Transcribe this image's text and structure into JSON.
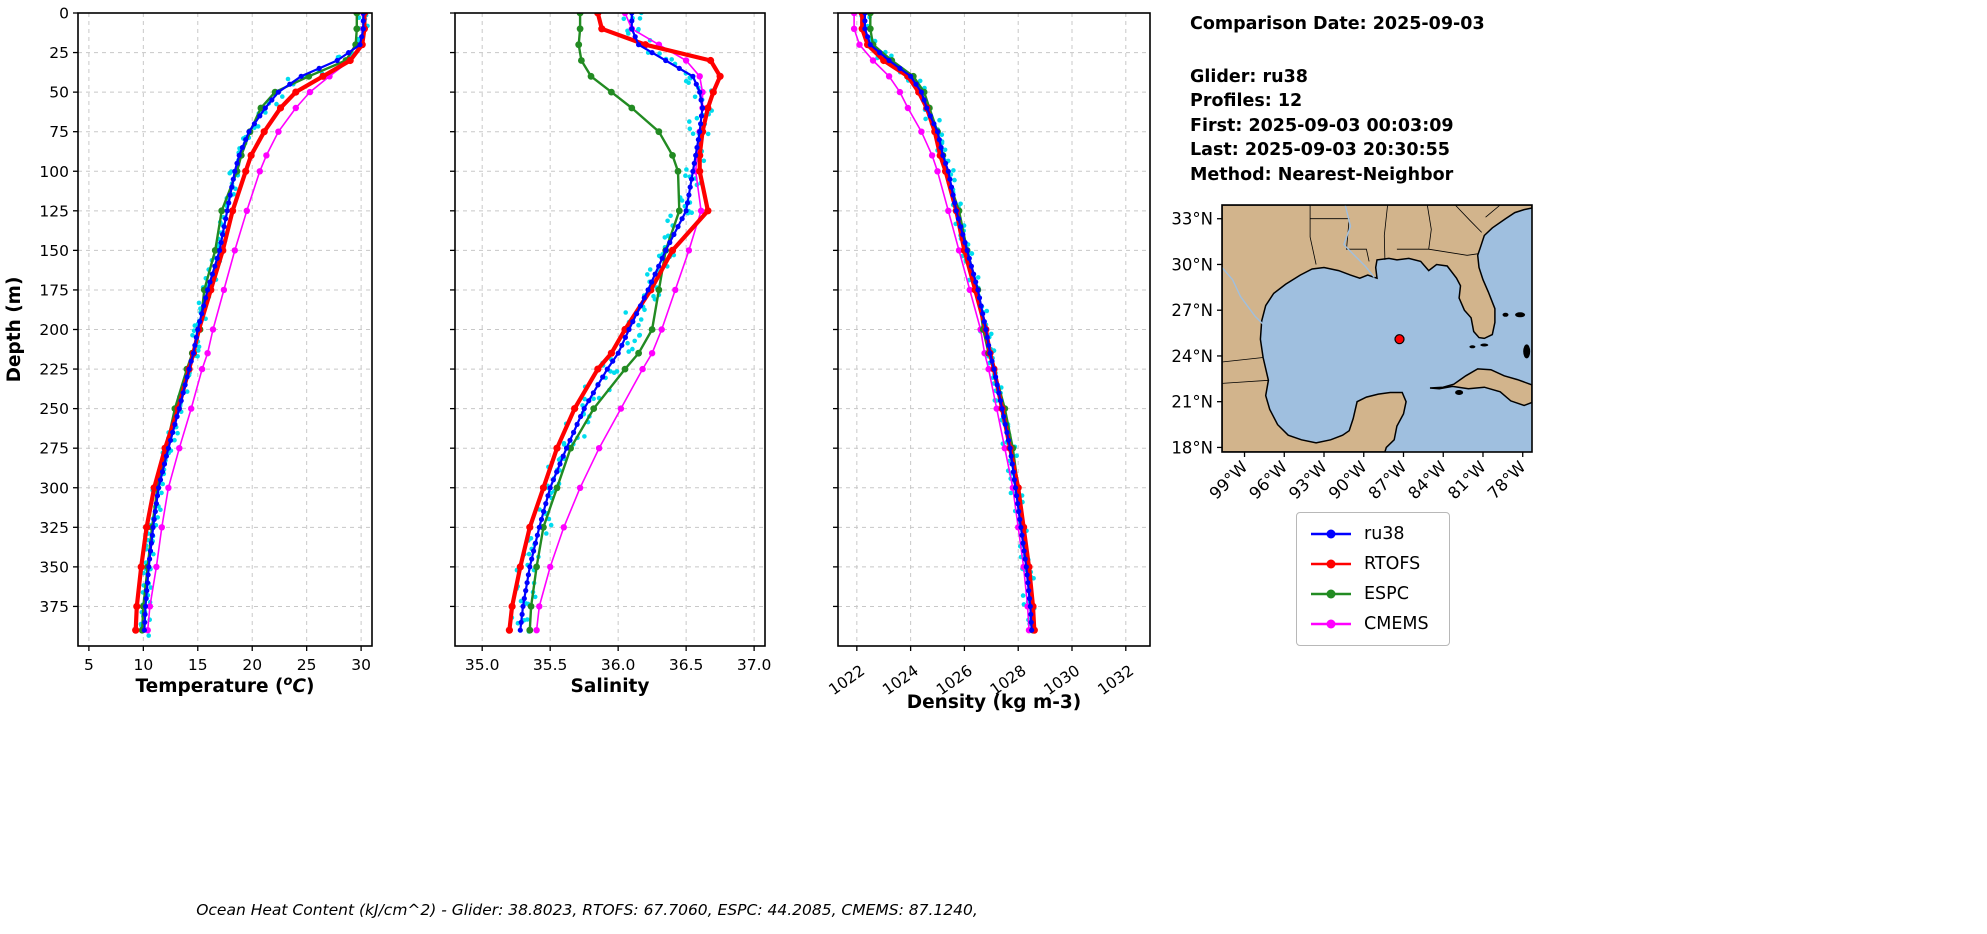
{
  "info_panel": {
    "comparison_date": "Comparison Date: 2025-09-03",
    "glider": "Glider: ru38",
    "profiles": "Profiles: 12",
    "first": "First: 2025-09-03 00:03:09",
    "last": "Last: 2025-09-03 20:30:55",
    "method": "Method: Nearest-Neighbor"
  },
  "footer": "Ocean Heat Content (kJ/cm^2) - Glider: 38.8023,  RTOFS: 67.7060,  ESPC: 44.2085,  CMEMS: 87.1240,",
  "legend": {
    "entries": [
      {
        "label": "ru38",
        "color": "#0000ff"
      },
      {
        "label": "RTOFS",
        "color": "#ff0000"
      },
      {
        "label": "ESPC",
        "color": "#228b22"
      },
      {
        "label": "CMEMS",
        "color": "#ff00ff"
      }
    ]
  },
  "map": {
    "land_color": "#d2b48c",
    "water_color": "#9fbfdf",
    "marker": {
      "lat": 25.1,
      "lon": -87.3,
      "color": "#ff0000"
    },
    "lat_ticks": [
      {
        "v": 33,
        "label": "33°N"
      },
      {
        "v": 30,
        "label": "30°N"
      },
      {
        "v": 27,
        "label": "27°N"
      },
      {
        "v": 24,
        "label": "24°N"
      },
      {
        "v": 21,
        "label": "21°N"
      },
      {
        "v": 18,
        "label": "18°N"
      }
    ],
    "lon_ticks": [
      {
        "v": -99,
        "label": "99°W"
      },
      {
        "v": -96,
        "label": "96°W"
      },
      {
        "v": -93,
        "label": "93°W"
      },
      {
        "v": -90,
        "label": "90°W"
      },
      {
        "v": -87,
        "label": "87°W"
      },
      {
        "v": -84,
        "label": "84°W"
      },
      {
        "v": -81,
        "label": "81°W"
      },
      {
        "v": -78,
        "label": "78°W"
      }
    ]
  },
  "chart_data": [
    {
      "type": "line",
      "xlabel": "Temperature (°C)",
      "xlabel_math": {
        "pre": "Temperature (",
        "sup": "o",
        "base": "C",
        "post": ")"
      },
      "ylabel": "Depth (m)",
      "xlim": [
        4,
        31
      ],
      "xticks": [
        {
          "v": 5,
          "label": "5"
        },
        {
          "v": 10,
          "label": "10"
        },
        {
          "v": 15,
          "label": "15"
        },
        {
          "v": 20,
          "label": "20"
        },
        {
          "v": 25,
          "label": "25"
        },
        {
          "v": 30,
          "label": "30"
        }
      ],
      "depth_lim": [
        0,
        400
      ],
      "depth_ticks": [
        0,
        25,
        50,
        75,
        100,
        125,
        150,
        175,
        200,
        225,
        250,
        275,
        300,
        325,
        350,
        375
      ],
      "depths": [
        0,
        10,
        20,
        30,
        40,
        50,
        60,
        75,
        90,
        100,
        125,
        150,
        175,
        200,
        215,
        225,
        250,
        275,
        300,
        325,
        350,
        375,
        390
      ],
      "scatter_jitter": 0.45,
      "series": [
        {
          "name": "ru38-raw",
          "style": "scatter",
          "color": "#00dcee",
          "source": "ru38"
        },
        {
          "name": "CMEMS",
          "style": "line+marker",
          "color": "#ff00ff",
          "line_width": 1.6,
          "marker_radius": 3.2,
          "values": [
            30.2,
            30.2,
            30.0,
            29.0,
            27.1,
            25.3,
            24.0,
            22.4,
            21.3,
            20.7,
            19.5,
            18.4,
            17.4,
            16.4,
            15.9,
            15.4,
            14.4,
            13.3,
            12.3,
            11.7,
            11.2,
            10.6,
            10.4
          ]
        },
        {
          "name": "ESPC",
          "style": "line+marker",
          "color": "#228b22",
          "line_width": 2.4,
          "marker_radius": 3.4,
          "values": [
            29.6,
            29.6,
            29.5,
            28.6,
            25.2,
            22.1,
            20.8,
            19.8,
            19.0,
            18.6,
            17.2,
            16.6,
            15.6,
            15.2,
            14.5,
            14.0,
            12.9,
            12.1,
            11.3,
            10.8,
            10.4,
            10.0,
            9.9
          ]
        },
        {
          "name": "RTOFS",
          "style": "line+marker",
          "color": "#ff0000",
          "line_width": 4.2,
          "marker_radius": 3.6,
          "values": [
            30.3,
            30.3,
            30.1,
            29.0,
            26.5,
            24.0,
            22.6,
            21.1,
            19.9,
            19.4,
            18.2,
            17.3,
            16.2,
            15.1,
            14.6,
            14.2,
            13.2,
            12.0,
            11.0,
            10.3,
            9.8,
            9.4,
            9.3
          ]
        },
        {
          "name": "ru38",
          "style": "line+marker",
          "dense": true,
          "color": "#0000ff",
          "line_width": 2.2,
          "marker_radius": 2.6,
          "values": [
            30.2,
            30.2,
            29.9,
            27.8,
            24.5,
            22.4,
            21.2,
            19.7,
            18.8,
            18.4,
            17.7,
            17.0,
            15.9,
            15.0,
            14.6,
            14.2,
            13.3,
            12.3,
            11.4,
            10.9,
            10.5,
            10.2,
            10.1
          ]
        }
      ]
    },
    {
      "type": "line",
      "xlabel": "Salinity",
      "xlim": [
        34.8,
        37.08
      ],
      "xticks": [
        {
          "v": 35.0,
          "label": "35.0"
        },
        {
          "v": 35.5,
          "label": "35.5"
        },
        {
          "v": 36.0,
          "label": "36.0"
        },
        {
          "v": 36.5,
          "label": "36.5"
        },
        {
          "v": 37.0,
          "label": "37.0"
        }
      ],
      "depth_lim": [
        0,
        400
      ],
      "depth_ticks": [
        0,
        25,
        50,
        75,
        100,
        125,
        150,
        175,
        200,
        225,
        250,
        275,
        300,
        325,
        350,
        375
      ],
      "depths": [
        0,
        10,
        20,
        30,
        40,
        50,
        60,
        75,
        90,
        100,
        125,
        150,
        175,
        200,
        215,
        225,
        250,
        275,
        300,
        325,
        350,
        375,
        390
      ],
      "scatter_jitter": 0.085,
      "series": [
        {
          "name": "ru38-raw",
          "style": "scatter",
          "color": "#00dcee",
          "source": "ru38"
        },
        {
          "name": "CMEMS",
          "style": "line+marker",
          "color": "#ff00ff",
          "line_width": 1.6,
          "marker_radius": 3.2,
          "values": [
            36.05,
            36.1,
            36.3,
            36.5,
            36.6,
            36.62,
            36.62,
            36.6,
            36.58,
            36.57,
            36.61,
            36.52,
            36.42,
            36.32,
            36.25,
            36.18,
            36.02,
            35.86,
            35.72,
            35.6,
            35.5,
            35.42,
            35.4
          ]
        },
        {
          "name": "ESPC",
          "style": "line+marker",
          "color": "#228b22",
          "line_width": 2.4,
          "marker_radius": 3.4,
          "values": [
            35.72,
            35.72,
            35.71,
            35.73,
            35.8,
            35.95,
            36.1,
            36.3,
            36.4,
            36.44,
            36.45,
            36.35,
            36.3,
            36.25,
            36.15,
            36.05,
            35.82,
            35.65,
            35.55,
            35.45,
            35.4,
            35.36,
            35.35
          ]
        },
        {
          "name": "RTOFS",
          "style": "line+marker",
          "color": "#ff0000",
          "line_width": 4.2,
          "marker_radius": 3.6,
          "values": [
            35.85,
            35.88,
            36.2,
            36.68,
            36.75,
            36.7,
            36.66,
            36.62,
            36.6,
            36.6,
            36.66,
            36.4,
            36.24,
            36.05,
            35.95,
            35.85,
            35.68,
            35.55,
            35.45,
            35.35,
            35.28,
            35.22,
            35.2
          ]
        },
        {
          "name": "ru38",
          "style": "line+marker",
          "dense": true,
          "color": "#0000ff",
          "line_width": 2.2,
          "marker_radius": 2.6,
          "values": [
            36.1,
            36.1,
            36.15,
            36.35,
            36.55,
            36.6,
            36.62,
            36.6,
            36.57,
            36.55,
            36.5,
            36.35,
            36.22,
            36.08,
            36.0,
            35.92,
            35.75,
            35.62,
            35.5,
            35.42,
            35.35,
            35.3,
            35.28
          ]
        }
      ]
    },
    {
      "type": "line",
      "xlabel": "Density (kg m-3)",
      "xlim": [
        1021.3,
        1032.9
      ],
      "xticks": [
        {
          "v": 1022,
          "label": "1022"
        },
        {
          "v": 1024,
          "label": "1024"
        },
        {
          "v": 1026,
          "label": "1026"
        },
        {
          "v": 1028,
          "label": "1028"
        },
        {
          "v": 1030,
          "label": "1030"
        },
        {
          "v": 1032,
          "label": "1032"
        }
      ],
      "depth_lim": [
        0,
        400
      ],
      "depth_ticks": [
        0,
        25,
        50,
        75,
        100,
        125,
        150,
        175,
        200,
        225,
        250,
        275,
        300,
        325,
        350,
        375
      ],
      "depths": [
        0,
        10,
        20,
        30,
        40,
        50,
        60,
        75,
        90,
        100,
        125,
        150,
        175,
        200,
        215,
        225,
        250,
        275,
        300,
        325,
        350,
        375,
        390
      ],
      "scatter_jitter": 0.22,
      "series": [
        {
          "name": "ru38-raw",
          "style": "scatter",
          "color": "#00dcee",
          "source": "ru38"
        },
        {
          "name": "CMEMS",
          "style": "line+marker",
          "color": "#ff00ff",
          "line_width": 1.6,
          "marker_radius": 3.2,
          "values": [
            1021.9,
            1021.9,
            1022.1,
            1022.6,
            1023.2,
            1023.6,
            1023.9,
            1024.4,
            1024.8,
            1025.0,
            1025.4,
            1025.8,
            1026.2,
            1026.6,
            1026.75,
            1026.9,
            1027.2,
            1027.5,
            1027.8,
            1028.0,
            1028.2,
            1028.35,
            1028.4
          ]
        },
        {
          "name": "ESPC",
          "style": "line+marker",
          "color": "#228b22",
          "line_width": 2.4,
          "marker_radius": 3.4,
          "values": [
            1022.5,
            1022.5,
            1022.6,
            1023.3,
            1024.1,
            1024.5,
            1024.7,
            1025.0,
            1025.2,
            1025.3,
            1025.8,
            1026.1,
            1026.5,
            1026.7,
            1026.9,
            1027.1,
            1027.5,
            1027.8,
            1028.0,
            1028.2,
            1028.35,
            1028.5,
            1028.55
          ]
        },
        {
          "name": "RTOFS",
          "style": "line+marker",
          "color": "#ff0000",
          "line_width": 4.2,
          "marker_radius": 3.6,
          "values": [
            1022.2,
            1022.2,
            1022.4,
            1023.0,
            1023.9,
            1024.3,
            1024.6,
            1024.9,
            1025.1,
            1025.3,
            1025.7,
            1026.0,
            1026.4,
            1026.8,
            1026.95,
            1027.1,
            1027.4,
            1027.7,
            1028.0,
            1028.2,
            1028.4,
            1028.55,
            1028.6
          ]
        },
        {
          "name": "ru38",
          "style": "line+marker",
          "dense": true,
          "color": "#0000ff",
          "line_width": 2.2,
          "marker_radius": 2.6,
          "values": [
            1022.3,
            1022.3,
            1022.5,
            1023.2,
            1024.0,
            1024.4,
            1024.6,
            1025.0,
            1025.2,
            1025.4,
            1025.7,
            1026.1,
            1026.5,
            1026.8,
            1026.95,
            1027.1,
            1027.4,
            1027.7,
            1027.9,
            1028.1,
            1028.3,
            1028.45,
            1028.5
          ]
        }
      ]
    }
  ]
}
